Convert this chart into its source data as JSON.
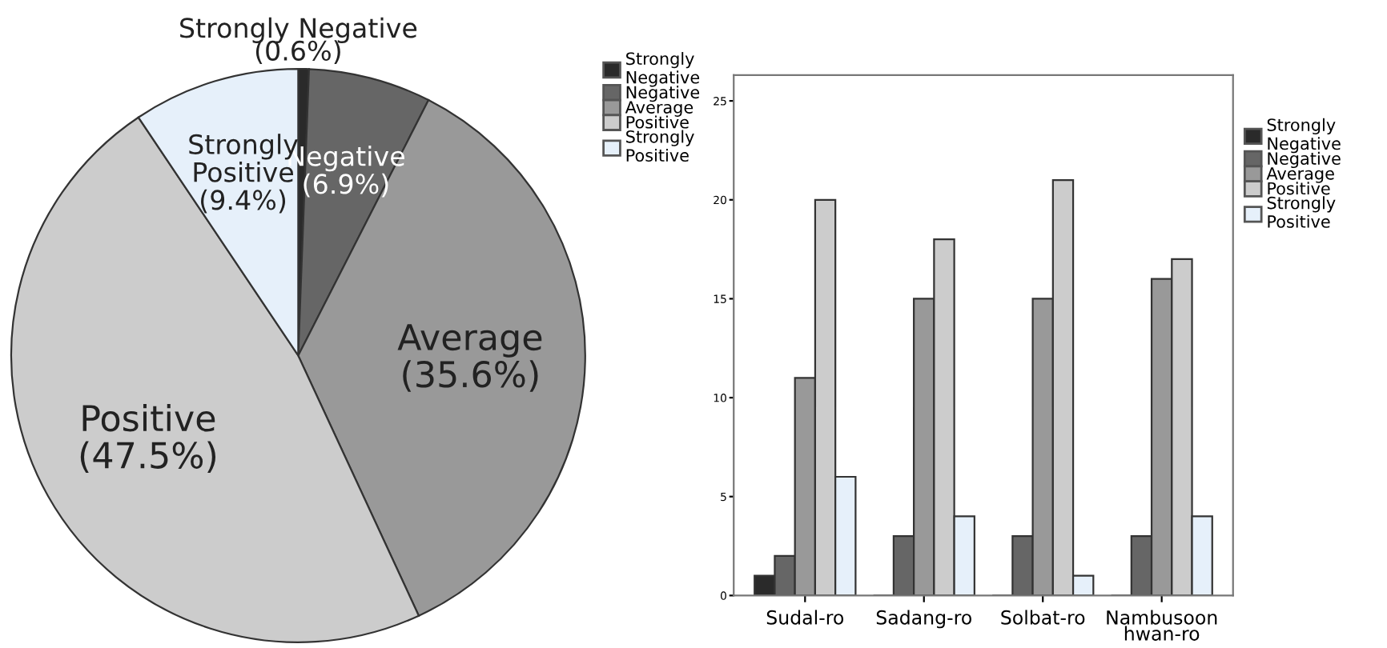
{
  "chart_data": [
    {
      "type": "pie",
      "categories": [
        "Strongly Negative",
        "Negative",
        "Average",
        "Positive",
        "Strongly Positive"
      ],
      "values": [
        0.6,
        6.9,
        35.6,
        47.5,
        9.4
      ],
      "colors": [
        "#2a2a2a",
        "#666666",
        "#999999",
        "#cccccc",
        "#e6f0fa"
      ],
      "value_labels": [
        "(0.6%)",
        "(6.9%)",
        "(35.6%)",
        "(47.5%)",
        "(9.4%)"
      ],
      "legend": "right"
    },
    {
      "type": "bar",
      "categories": [
        "Sudal-ro",
        "Sadang-ro",
        "Solbat-ro",
        "Nambusoon\nhwan-ro"
      ],
      "series": [
        {
          "name": "Strongly Negative",
          "color": "#2a2a2a",
          "values": [
            1,
            0,
            0,
            0
          ]
        },
        {
          "name": "Negative",
          "color": "#666666",
          "values": [
            2,
            3,
            3,
            3
          ]
        },
        {
          "name": "Average",
          "color": "#999999",
          "values": [
            11,
            15,
            15,
            16
          ]
        },
        {
          "name": "Positive",
          "color": "#cccccc",
          "values": [
            20,
            18,
            21,
            17
          ]
        },
        {
          "name": "Strongly Positive",
          "color": "#e6f0fa",
          "values": [
            6,
            4,
            1,
            4
          ]
        }
      ],
      "ylim": [
        0,
        26.3
      ],
      "yticks": [
        0,
        5,
        10,
        15,
        20,
        25
      ],
      "grid": false,
      "legend": "right"
    }
  ]
}
